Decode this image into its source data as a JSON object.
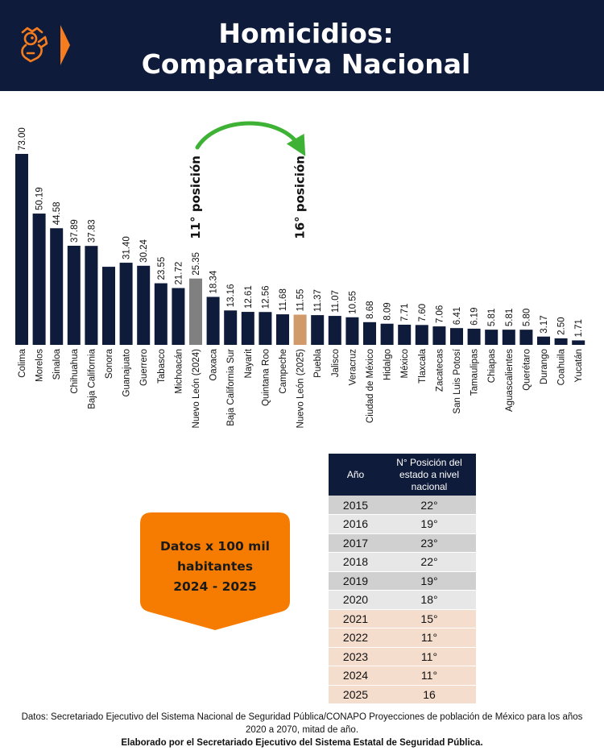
{
  "header": {
    "title_line1": "Homicidios:",
    "title_line2": "Comparativa Nacional",
    "logo_icon": "lion-crest-icon",
    "chevron_icon": "chevron-right-icon",
    "accent_color": "#f57c1f",
    "background_color": "#0f1b3a"
  },
  "chart_data": {
    "type": "bar",
    "title": "Homicidios: Comparativa Nacional",
    "xlabel": "",
    "ylabel": "Datos x 100 mil habitantes",
    "ylim": [
      0,
      73
    ],
    "categories": [
      "Colima",
      "Morelos",
      "Sinaloa",
      "Chihuahua",
      "Baja California",
      "Sonora",
      "Guanajuato",
      "Guerrero",
      "Tabasco",
      "Michoacán",
      "Nuevo León (2024)",
      "Oaxaca",
      "Baja California Sur",
      "Nayarit",
      "Quintana Roo",
      "Campeche",
      "Nuevo León (2025)",
      "Puebla",
      "Jalisco",
      "Veracruz",
      "Ciudad de México",
      "Hidalgo",
      "México",
      "Tlaxcala",
      "Zacatecas",
      "San Luis Potosí",
      "Tamaulipas",
      "Chiapas",
      "Aguascalientes",
      "Querétaro",
      "Durango",
      "Coahuila",
      "Yucatán"
    ],
    "values": [
      73.0,
      50.19,
      44.58,
      37.89,
      37.83,
      29.85,
      31.4,
      30.24,
      23.55,
      21.72,
      25.35,
      18.34,
      13.16,
      12.61,
      12.56,
      11.68,
      11.55,
      11.37,
      11.07,
      10.55,
      8.68,
      8.09,
      7.71,
      7.6,
      7.06,
      6.41,
      6.19,
      5.81,
      5.81,
      5.8,
      3.17,
      2.5,
      1.71
    ],
    "labels": [
      "73.00",
      "50.19",
      "44.58",
      "37.89",
      "37.83",
      "",
      "31.40",
      "30.24",
      "23.55",
      "21.72",
      "25.35",
      "18.34",
      "13.16",
      "12.61",
      "12.56",
      "11.68",
      "11.55",
      "11.37",
      "11.07",
      "10.55",
      "8.68",
      "8.09",
      "7.71",
      "7.60",
      "7.06",
      "6.41",
      "6.19",
      "5.81",
      "5.81",
      "5.80",
      "3.17",
      "2.50",
      "1.71"
    ],
    "bar_colors": {
      "default": "#0f1b3a",
      "Nuevo León (2024)": "#808080",
      "Nuevo León (2025)": "#d09a6a"
    },
    "annotations": [
      {
        "text": "11° posición",
        "category": "Nuevo León (2024)"
      },
      {
        "text": "16° posición",
        "category": "Nuevo León (2025)"
      }
    ],
    "arrow_color": "#3db234"
  },
  "badge": {
    "line1": "Datos x 100 mil",
    "line2": "habitantes",
    "line3": "2024 - 2025",
    "color": "#f57c00"
  },
  "table": {
    "col_year": "Año",
    "col_position": "N° Posición del estado a nivel nacional",
    "rows": [
      {
        "year": "2015",
        "position": "22°",
        "tone": "dark"
      },
      {
        "year": "2016",
        "position": "19°",
        "tone": "light"
      },
      {
        "year": "2017",
        "position": "23°",
        "tone": "dark"
      },
      {
        "year": "2018",
        "position": "22°",
        "tone": "light"
      },
      {
        "year": "2019",
        "position": "19°",
        "tone": "dark"
      },
      {
        "year": "2020",
        "position": "18°",
        "tone": "light"
      },
      {
        "year": "2021",
        "position": "15°",
        "tone": "peach"
      },
      {
        "year": "2022",
        "position": "11°",
        "tone": "peach"
      },
      {
        "year": "2023",
        "position": "11°",
        "tone": "peach"
      },
      {
        "year": "2024",
        "position": "11°",
        "tone": "peach"
      },
      {
        "year": "2025",
        "position": "16",
        "tone": "peach"
      }
    ]
  },
  "source": {
    "line1": "Datos: Secretariado Ejecutivo del Sistema Nacional de Seguridad Pública/CONAPO Proyecciones de población de México para los años 2020 a 2070, mitad de año.",
    "line2": "Elaborado por el Secretariado Ejecutivo del Sistema Estatal de Seguridad Pública."
  }
}
